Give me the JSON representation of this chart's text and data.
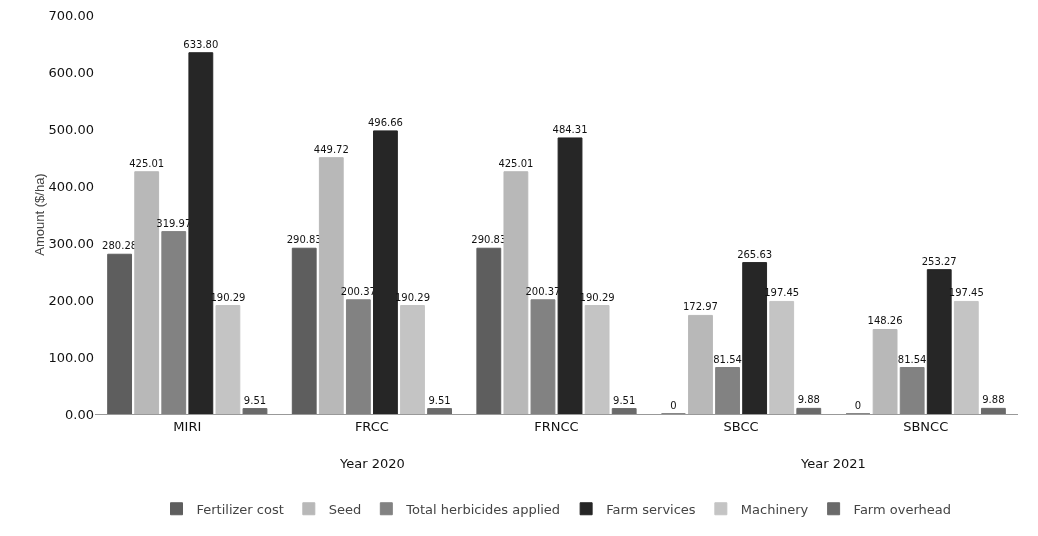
{
  "chart_data": {
    "type": "bar",
    "ylabel": "Amount ($/ha)",
    "categories": [
      "MIRI",
      "FRCC",
      "FRNCC",
      "SBCC",
      "SBNCC"
    ],
    "series": [
      {
        "name": "Fertilizer cost",
        "color": "#5e5e5e",
        "values": [
          280.28,
          290.83,
          290.83,
          0,
          0
        ],
        "value_labels": [
          "280.28",
          "290.83",
          "290.83",
          "0",
          "0"
        ]
      },
      {
        "name": "Seed",
        "color": "#b8b8b8",
        "values": [
          425.01,
          449.72,
          425.01,
          172.97,
          148.26
        ],
        "value_labels": [
          "425.01",
          "449.72",
          "425.01",
          "172.97",
          "148.26"
        ]
      },
      {
        "name": "Total herbicides applied",
        "color": "#828282",
        "values": [
          319.97,
          200.37,
          200.37,
          81.54,
          81.54
        ],
        "value_labels": [
          "319.97",
          "200.37",
          "200.37",
          "81.54",
          "81.54"
        ]
      },
      {
        "name": "Farm services",
        "color": "#262626",
        "values": [
          633.8,
          496.66,
          484.31,
          265.63,
          253.27
        ],
        "value_labels": [
          "633.80",
          "496.66",
          "484.31",
          "265.63",
          "253.27"
        ]
      },
      {
        "name": "Machinery",
        "color": "#c4c4c4",
        "values": [
          190.29,
          190.29,
          190.29,
          197.45,
          197.45
        ],
        "value_labels": [
          "190.29",
          "190.29",
          "190.29",
          "197.45",
          "197.45"
        ]
      },
      {
        "name": "Farm overhead",
        "color": "#6a6a6a",
        "values": [
          9.51,
          9.51,
          9.51,
          9.88,
          9.88
        ],
        "value_labels": [
          "9.51",
          "9.51",
          "9.51",
          "9.88",
          "9.88"
        ]
      }
    ],
    "ylim": [
      0,
      700
    ],
    "yticks": [
      {
        "value": 0,
        "label": "0.00"
      },
      {
        "value": 100,
        "label": "100.00"
      },
      {
        "value": 200,
        "label": "200.00"
      },
      {
        "value": 300,
        "label": "300.00"
      },
      {
        "value": 400,
        "label": "400.00"
      },
      {
        "value": 500,
        "label": "500.00"
      },
      {
        "value": 600,
        "label": "600.00"
      },
      {
        "value": 700,
        "label": "700.00"
      }
    ],
    "grid": false,
    "legend": "bottom",
    "annotations": [
      "Year 2020",
      "Year 2021"
    ]
  }
}
